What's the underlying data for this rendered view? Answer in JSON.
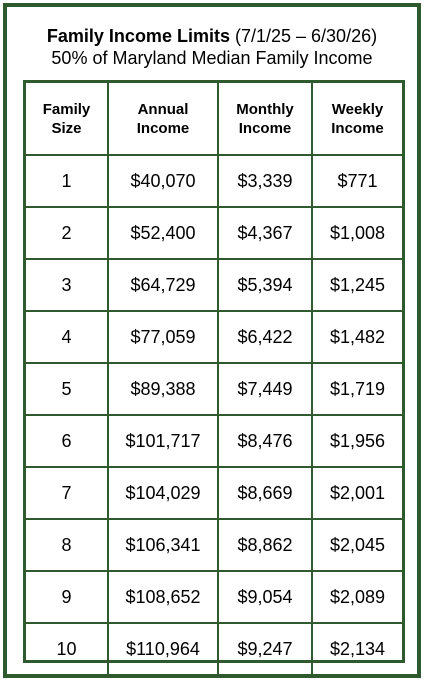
{
  "header": {
    "title_bold": "Family Income Limits",
    "title_dates": "(7/1/25 – 6/30/26)",
    "subtitle": "50% of Maryland Median Family Income"
  },
  "table": {
    "columns": [
      {
        "line1": "Family",
        "line2": "Size"
      },
      {
        "line1": "Annual",
        "line2": "Income"
      },
      {
        "line1": "Monthly",
        "line2": "Income"
      },
      {
        "line1": "Weekly",
        "line2": "Income"
      }
    ],
    "rows": [
      [
        "1",
        "$40,070",
        "$3,339",
        "$771"
      ],
      [
        "2",
        "$52,400",
        "$4,367",
        "$1,008"
      ],
      [
        "3",
        "$64,729",
        "$5,394",
        "$1,245"
      ],
      [
        "4",
        "$77,059",
        "$6,422",
        "$1,482"
      ],
      [
        "5",
        "$89,388",
        "$7,449",
        "$1,719"
      ],
      [
        "6",
        "$101,717",
        "$8,476",
        "$1,956"
      ],
      [
        "7",
        "$104,029",
        "$8,669",
        "$2,001"
      ],
      [
        "8",
        "$106,341",
        "$8,862",
        "$2,045"
      ],
      [
        "9",
        "$108,652",
        "$9,054",
        "$2,089"
      ],
      [
        "10",
        "$110,964",
        "$9,247",
        "$2,134"
      ]
    ]
  },
  "colors": {
    "border": "#2e5a2e",
    "background": "#ffffff",
    "text": "#000000"
  }
}
